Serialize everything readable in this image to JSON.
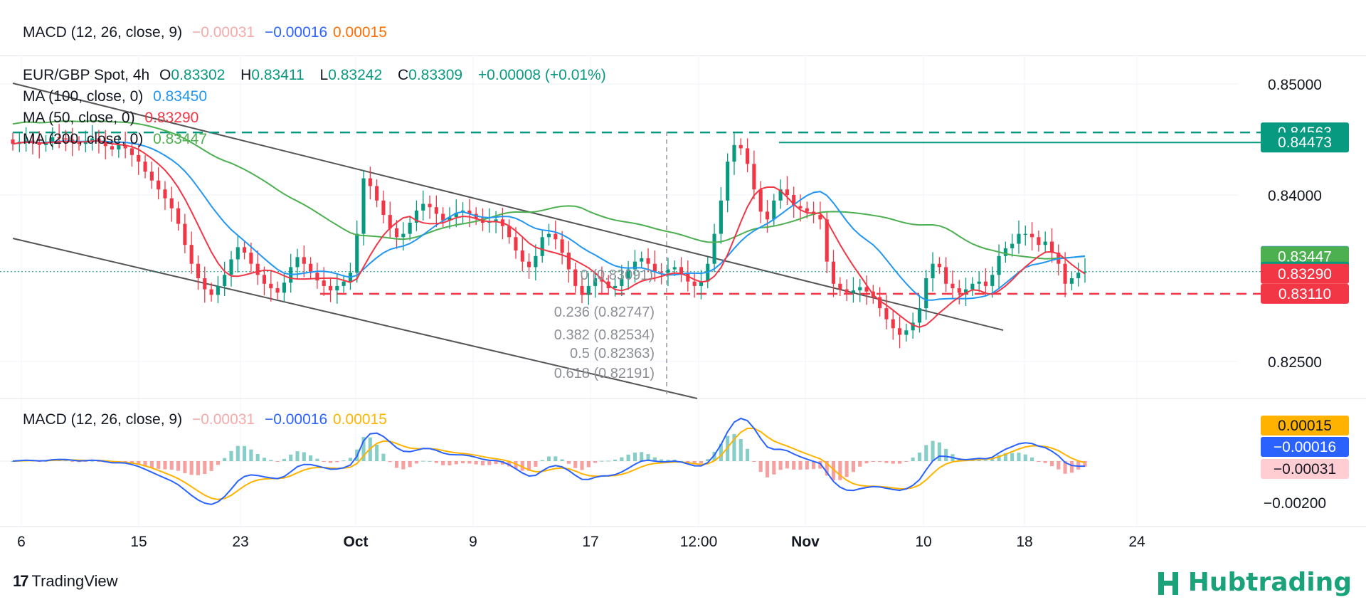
{
  "macd_header": {
    "label": "MACD (12, 26, close, 9)",
    "hist": "−0.00031",
    "macd": "−0.00016",
    "signal": "0.00015",
    "hist_color": "#f7a9a9",
    "macd_color": "#2962ff",
    "signal_color": "#ff6d00"
  },
  "symbol": {
    "name": "EUR/GBP Spot, 4h",
    "o_key": "O",
    "o": "0.83302",
    "h_key": "H",
    "h": "0.83411",
    "l_key": "L",
    "l": "0.83242",
    "c_key": "C",
    "c": "0.83309",
    "change": "+0.00008 (+0.01%)"
  },
  "ma_legend": [
    {
      "label": "MA (100, close, 0)",
      "value": "0.83450",
      "color": "#2196f3"
    },
    {
      "label": "MA (50, close, 0)",
      "value": "0.83290",
      "color": "#f23645"
    },
    {
      "label": "MA (200, close, 0)",
      "value": "0.83447",
      "color": "#4caf50"
    }
  ],
  "chart_data": {
    "type": "candlestick",
    "price_axis": {
      "ticks": [
        {
          "value": 0.85,
          "label": "0.85000"
        },
        {
          "value": 0.84,
          "label": "0.84000"
        },
        {
          "value": 0.825,
          "label": "0.82500"
        }
      ],
      "badges": [
        {
          "value": 0.84563,
          "label": "0.84563",
          "bg": "#089981"
        },
        {
          "value": 0.84473,
          "label": "0.84473",
          "bg": "#089981"
        },
        {
          "value": 0.8345,
          "label": "0.83450",
          "bg": "#2196f3"
        },
        {
          "value": 0.83447,
          "label": "0.83447",
          "bg": "#4caf50"
        },
        {
          "value": 0.83309,
          "label": "0.83309",
          "bg": "#089981"
        },
        {
          "value": 0.8329,
          "label": "0.83290",
          "bg": "#f23645"
        },
        {
          "value": 0.8311,
          "label": "0.83110",
          "bg": "#f23645"
        }
      ]
    },
    "time_axis": [
      "6",
      "15",
      "23",
      "Oct",
      "9",
      "17",
      "12:00",
      "Nov",
      "10",
      "18",
      "24"
    ],
    "levels": [
      {
        "value": 0.84563,
        "style": "dashed",
        "color": "#089981"
      },
      {
        "value": 0.84473,
        "style": "solid",
        "color": "#089981"
      },
      {
        "value": 0.8311,
        "style": "dashed",
        "color": "#f23645"
      }
    ],
    "fibonacci": [
      {
        "text": "0 (0.83091)"
      },
      {
        "text": "0.236 (0.82747)"
      },
      {
        "text": "0.382 (0.82534)"
      },
      {
        "text": "0.5 (0.82363)"
      },
      {
        "text": "0.618 (0.82191)"
      }
    ],
    "close_series": [
      0.8446,
      0.8448,
      0.8449,
      0.8447,
      0.8445,
      0.8448,
      0.8452,
      0.8451,
      0.845,
      0.8447,
      0.8446,
      0.8449,
      0.8451,
      0.8448,
      0.8444,
      0.8441,
      0.8445,
      0.8442,
      0.8436,
      0.843,
      0.8421,
      0.8413,
      0.8405,
      0.8397,
      0.8388,
      0.8374,
      0.8355,
      0.8338,
      0.8325,
      0.8315,
      0.831,
      0.8318,
      0.8328,
      0.8342,
      0.8353,
      0.8348,
      0.8338,
      0.8328,
      0.832,
      0.8316,
      0.8312,
      0.8321,
      0.8335,
      0.8344,
      0.8338,
      0.833,
      0.8323,
      0.8318,
      0.8314,
      0.8318,
      0.8322,
      0.833,
      0.8365,
      0.8415,
      0.8408,
      0.8395,
      0.8382,
      0.837,
      0.8362,
      0.8365,
      0.8375,
      0.8386,
      0.8392,
      0.8389,
      0.8383,
      0.8377,
      0.838,
      0.8384,
      0.8386,
      0.8383,
      0.8379,
      0.8375,
      0.8376,
      0.8378,
      0.8372,
      0.8362,
      0.835,
      0.834,
      0.8335,
      0.8345,
      0.8362,
      0.8365,
      0.836,
      0.8348,
      0.8333,
      0.8318,
      0.831,
      0.8318,
      0.8325,
      0.8322,
      0.8316,
      0.8318,
      0.8325,
      0.8333,
      0.834,
      0.8343,
      0.8338,
      0.8331,
      0.833,
      0.8333,
      0.8335,
      0.8329,
      0.8322,
      0.8318,
      0.8322,
      0.8338,
      0.8365,
      0.8395,
      0.843,
      0.8445,
      0.8442,
      0.8428,
      0.8405,
      0.8385,
      0.8378,
      0.8395,
      0.8405,
      0.84,
      0.839,
      0.8388,
      0.8385,
      0.8382,
      0.8378,
      0.834,
      0.832,
      0.8315,
      0.8312,
      0.8314,
      0.8317,
      0.8313,
      0.8308,
      0.8298,
      0.8288,
      0.828,
      0.8274,
      0.8278,
      0.8285,
      0.8298,
      0.8325,
      0.8338,
      0.8335,
      0.832,
      0.8316,
      0.8312,
      0.8315,
      0.832,
      0.8322,
      0.8318,
      0.8328,
      0.8345,
      0.8352,
      0.8356,
      0.8365,
      0.8365,
      0.8362,
      0.8355,
      0.8358,
      0.8348,
      0.8338,
      0.832,
      0.8325,
      0.833,
      0.8331
    ],
    "ma100_last": 0.8345,
    "ma50_last": 0.8329,
    "ma200_last": 0.83447,
    "macd_axis": [
      {
        "value": -0.002,
        "label": "−0.00200"
      }
    ],
    "macd_badges": [
      {
        "label": "0.00015",
        "bg": "#ffb300",
        "fg": "#131722"
      },
      {
        "label": "−0.00016",
        "bg": "#2962ff",
        "fg": "#ffffff"
      },
      {
        "label": "−0.00031",
        "bg": "#ffcdd2",
        "fg": "#131722"
      }
    ]
  },
  "footer": {
    "tradingview": "TradingView",
    "hub_name": "Hubtrading"
  }
}
